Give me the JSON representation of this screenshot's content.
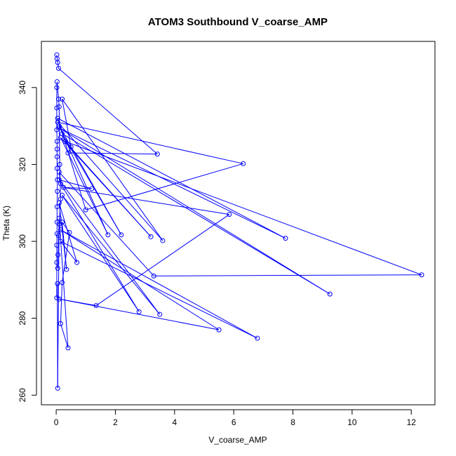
{
  "chart_data": {
    "type": "line",
    "title": "ATOM3 Southbound V_coarse_AMP",
    "xlabel": "V_coarse_AMP",
    "ylabel": "Theta (K)",
    "xlim": [
      -0.5,
      12.8
    ],
    "ylim": [
      257.5,
      352
    ],
    "xticks": [
      0,
      2,
      4,
      6,
      8,
      10,
      12
    ],
    "yticks": [
      260,
      280,
      300,
      320,
      340
    ],
    "series_color": "#0000ff",
    "marker": "open-circle",
    "grid": false,
    "series": [
      {
        "points": [
          [
            0.02,
            348.5
          ],
          [
            0.03,
            347.5
          ],
          [
            0.05,
            346.5
          ],
          [
            0.08,
            345.0
          ],
          [
            3.42,
            322.7
          ],
          [
            0.4,
            323.0
          ],
          [
            0.5,
            324.5
          ],
          [
            0.2,
            337.0
          ],
          [
            3.6,
            300.2
          ],
          [
            0.05,
            331.0
          ],
          [
            6.32,
            320.2
          ],
          [
            1.0,
            308.2
          ],
          [
            0.05,
            332.0
          ],
          [
            7.75,
            300.8
          ],
          [
            0.1,
            329.5
          ],
          [
            9.25,
            286.3
          ],
          [
            0.2,
            328.0
          ],
          [
            2.2,
            301.7
          ],
          [
            0.1,
            330.0
          ],
          [
            1.75,
            301.7
          ],
          [
            0.15,
            327.0
          ],
          [
            3.2,
            301.2
          ],
          [
            0.3,
            326.0
          ],
          [
            12.35,
            291.3
          ],
          [
            3.3,
            291.0
          ],
          [
            0.1,
            318.0
          ],
          [
            0.15,
            315.0
          ],
          [
            2.8,
            281.7
          ],
          [
            0.2,
            312.0
          ],
          [
            3.5,
            281.0
          ],
          [
            0.1,
            316.0
          ],
          [
            1.2,
            313.7
          ],
          [
            0.25,
            314.0
          ],
          [
            5.85,
            307.0
          ],
          [
            1.35,
            283.3
          ],
          [
            0.1,
            285.0
          ],
          [
            5.5,
            277.0
          ],
          [
            0.15,
            303.0
          ],
          [
            6.8,
            274.8
          ],
          [
            0.15,
            300.0
          ],
          [
            0.7,
            294.5
          ],
          [
            0.1,
            310.0
          ],
          [
            0.35,
            292.7
          ],
          [
            0.2,
            305.0
          ],
          [
            0.45,
            302.3
          ],
          [
            0.2,
            289.3
          ],
          [
            0.15,
            278.6
          ],
          [
            0.4,
            272.3
          ],
          [
            0.1,
            306.0
          ],
          [
            0.05,
            261.8
          ],
          [
            0.04,
            289.0
          ],
          [
            0.02,
            285.3
          ],
          [
            0.02,
            294.5
          ],
          [
            0.02,
            299.0
          ],
          [
            0.03,
            302.0
          ],
          [
            0.03,
            305.0
          ],
          [
            0.03,
            309.0
          ],
          [
            0.04,
            313.0
          ],
          [
            0.04,
            316.0
          ],
          [
            0.03,
            319.0
          ],
          [
            0.03,
            322.0
          ],
          [
            0.03,
            324.0
          ],
          [
            0.03,
            326.0
          ],
          [
            0.02,
            329.0
          ],
          [
            0.02,
            334.7
          ],
          [
            0.02,
            340.0
          ],
          [
            0.03,
            341.5
          ],
          [
            0.08,
            337.0
          ],
          [
            0.1,
            335.0
          ],
          [
            0.12,
            320.0
          ],
          [
            0.15,
            311.0
          ],
          [
            0.1,
            304.5
          ],
          [
            0.08,
            301.5
          ],
          [
            0.06,
            296.5
          ],
          [
            0.05,
            293.0
          ]
        ]
      }
    ]
  }
}
